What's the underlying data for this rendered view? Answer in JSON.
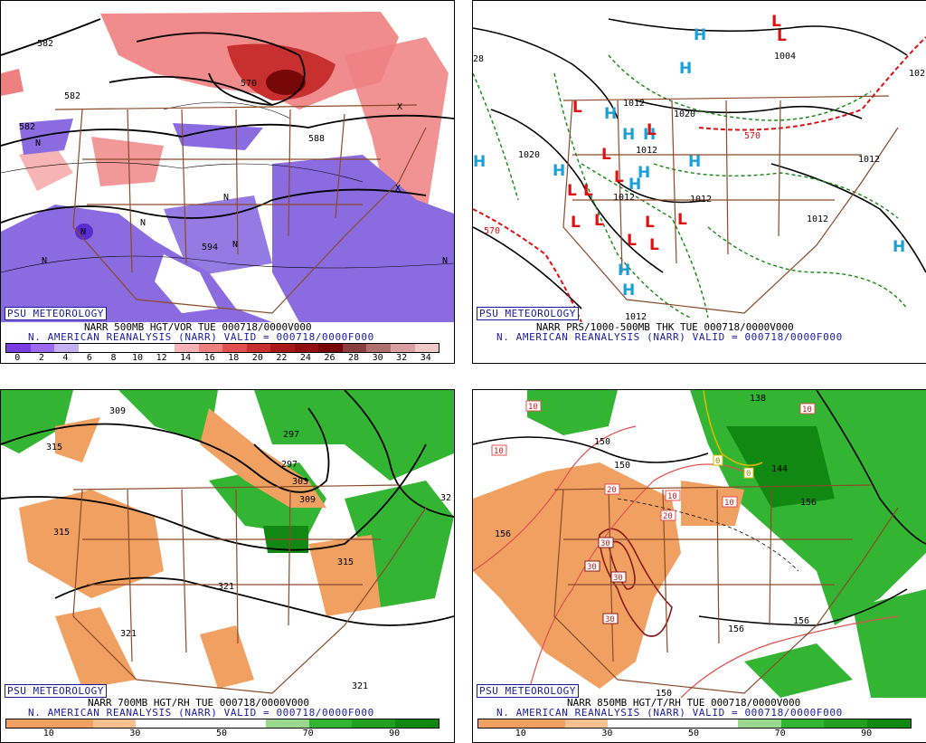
{
  "brand": "PSU METEOROLOGY",
  "subtitle": "N. AMERICAN REANALYSIS (NARR) VALID = 000718/0000F000",
  "colors": {
    "border_brown": "#8b4a2a",
    "contour": "#000000",
    "text_blue": "#1a1aa0",
    "vort_purple": "#8a6be0",
    "vort_red": "#e05050",
    "rh_green": "#33b533",
    "rh_orange": "#f0a060",
    "thk_green": "#118811",
    "thk_red": "#dd1111",
    "high_blue": "#1aa0d8",
    "low_red": "#dd1111"
  },
  "panels": [
    {
      "id": "vorticity",
      "title": "NARR 500MB HGT/VOR TUE 000718/0000V000",
      "contour_labels": [
        "582",
        "582",
        "582",
        "570",
        "588",
        "594"
      ],
      "symbols": [
        "N",
        "N",
        "N",
        "N",
        "N",
        "N",
        "N",
        "X",
        "X"
      ],
      "colorbar": {
        "ticks": [
          "0",
          "2",
          "4",
          "6",
          "8",
          "10",
          "12",
          "14",
          "16",
          "18",
          "20",
          "22",
          "24",
          "26",
          "28",
          "30",
          "32",
          "34"
        ],
        "colors": [
          "#7a3be0",
          "#9a6af0",
          "#c4b0f2",
          "#ffffff",
          "#ffffff",
          "#ffffff",
          "#ffffff",
          "#f6b4b4",
          "#ee8080",
          "#e05050",
          "#c83030",
          "#a81818",
          "#901010",
          "#780808",
          "#8a4040",
          "#b07070",
          "#d8a0a0",
          "#f0c8c8"
        ]
      }
    },
    {
      "id": "thickness",
      "title": "NARR PRS/1000-500MB THK TUE 000718/0000V000",
      "contour_labels": [
        "1020",
        "1012",
        "1020",
        "1012",
        "1012",
        "1012",
        "1012",
        "1012",
        "1004",
        "1012",
        "570",
        "570",
        "28",
        "102"
      ],
      "symbols": {
        "highs": [
          "H",
          "H",
          "H",
          "H",
          "H",
          "H",
          "H",
          "H",
          "H",
          "H",
          "H",
          "H",
          "H"
        ],
        "lows": [
          "L",
          "L",
          "L",
          "L",
          "L",
          "L",
          "L",
          "L",
          "L",
          "L",
          "L",
          "L",
          "L",
          "L"
        ]
      }
    },
    {
      "id": "700mb",
      "title": "NARR 700MB HGT/RH TUE 000718/0000V000",
      "contour_labels": [
        "309",
        "315",
        "297",
        "297",
        "303",
        "309",
        "315",
        "315",
        "321",
        "321",
        "321",
        "32"
      ],
      "colorbar": {
        "ticks": [
          "10",
          "30",
          "50",
          "70",
          "90"
        ],
        "colors": [
          "#f0a060",
          "#f0a060",
          "#f6c090",
          "#ffffff",
          "#ffffff",
          "#ffffff",
          "#9ad890",
          "#33b533",
          "#22a022",
          "#118811"
        ]
      }
    },
    {
      "id": "850mb",
      "title": "NARR 850MB HGT/T/RH TUE 000718/0000V000",
      "contour_labels": [
        "150",
        "150",
        "156",
        "156",
        "156",
        "150",
        "138",
        "144",
        "156",
        "156"
      ],
      "temp_labels": [
        "10",
        "10",
        "10",
        "20",
        "20",
        "30",
        "30",
        "30",
        "30",
        "10",
        "10",
        "0",
        "0"
      ],
      "colorbar": {
        "ticks": [
          "10",
          "30",
          "50",
          "70",
          "90"
        ],
        "colors": [
          "#f0a060",
          "#f0a060",
          "#f6c090",
          "#ffffff",
          "#ffffff",
          "#ffffff",
          "#9ad890",
          "#33b533",
          "#22a022",
          "#118811"
        ]
      }
    }
  ]
}
